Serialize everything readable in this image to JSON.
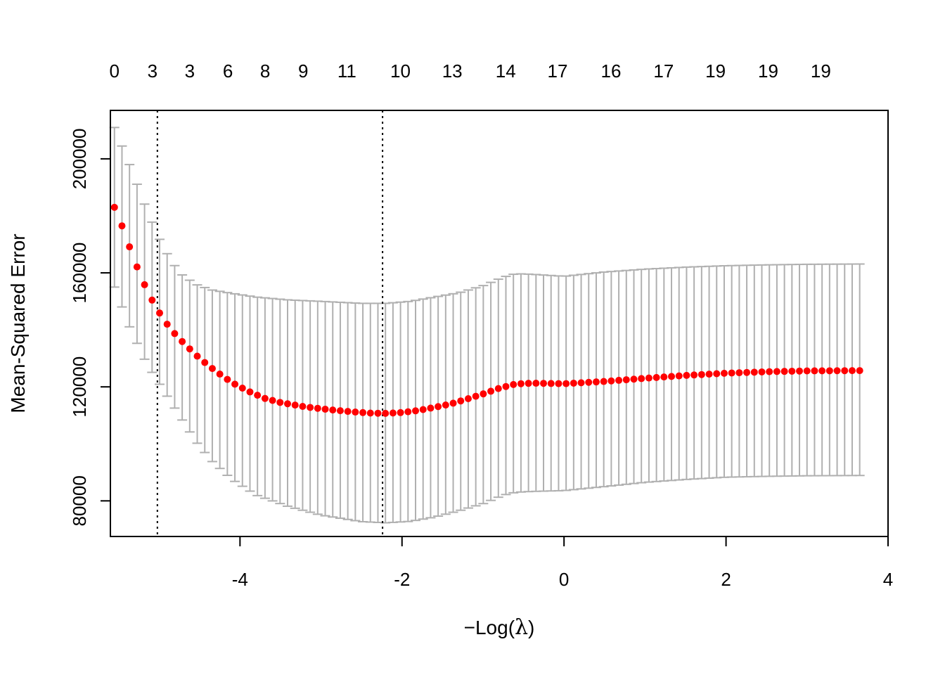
{
  "chart_data": {
    "type": "scatter",
    "title": "",
    "xlabel": "−Log(λ)",
    "xlabel_prefix": "−",
    "xlabel_text": "Log(",
    "xlabel_lambda": "λ",
    "xlabel_close": ")",
    "ylabel": "Mean-Squared Error",
    "xlim": [
      -5.6,
      4.0
    ],
    "ylim": [
      67500,
      217000
    ],
    "x_ticks": [
      -4,
      -2,
      0,
      2,
      4
    ],
    "x_tick_labels": [
      "-4",
      "-2",
      "0",
      "2",
      "4"
    ],
    "y_ticks": [
      80000,
      120000,
      160000,
      200000
    ],
    "y_tick_labels": [
      "80000",
      "120000",
      "160000",
      "200000"
    ],
    "top_axis_counts": [
      {
        "x": -5.55,
        "label": "0"
      },
      {
        "x": -5.08,
        "label": "3"
      },
      {
        "x": -4.62,
        "label": "3"
      },
      {
        "x": -4.15,
        "label": "6"
      },
      {
        "x": -3.69,
        "label": "8"
      },
      {
        "x": -3.22,
        "label": "9"
      },
      {
        "x": -2.68,
        "label": "11"
      },
      {
        "x": -2.02,
        "label": "10"
      },
      {
        "x": -1.38,
        "label": "13"
      },
      {
        "x": -0.72,
        "label": "14"
      },
      {
        "x": -0.08,
        "label": "17"
      },
      {
        "x": 0.58,
        "label": "16"
      },
      {
        "x": 1.23,
        "label": "17"
      },
      {
        "x": 1.87,
        "label": "19"
      },
      {
        "x": 2.52,
        "label": "19"
      },
      {
        "x": 3.17,
        "label": "19"
      }
    ],
    "vertical_lines_x": [
      -5.02,
      -2.24
    ],
    "x_start": -5.55,
    "x_end": 3.65,
    "n_points": 100,
    "mse_keyframes": [
      [
        -5.55,
        183000
      ],
      [
        -5.45,
        176000
      ],
      [
        -5.35,
        168000
      ],
      [
        -5.25,
        160500
      ],
      [
        -5.15,
        154000
      ],
      [
        -5.05,
        148500
      ],
      [
        -4.95,
        144000
      ],
      [
        -4.85,
        140000
      ],
      [
        -4.7,
        135500
      ],
      [
        -4.5,
        130000
      ],
      [
        -4.3,
        125500
      ],
      [
        -4.1,
        121500
      ],
      [
        -3.9,
        118500
      ],
      [
        -3.7,
        116000
      ],
      [
        -3.5,
        114500
      ],
      [
        -3.2,
        113000
      ],
      [
        -2.9,
        112000
      ],
      [
        -2.6,
        111200
      ],
      [
        -2.4,
        110800
      ],
      [
        -2.2,
        110700
      ],
      [
        -2.0,
        111000
      ],
      [
        -1.8,
        111700
      ],
      [
        -1.6,
        112800
      ],
      [
        -1.4,
        114000
      ],
      [
        -1.2,
        115700
      ],
      [
        -1.0,
        117500
      ],
      [
        -0.8,
        119500
      ],
      [
        -0.6,
        121000
      ],
      [
        -0.4,
        121300
      ],
      [
        0.0,
        121100
      ],
      [
        0.5,
        121900
      ],
      [
        1.0,
        123000
      ],
      [
        1.5,
        124000
      ],
      [
        2.0,
        124800
      ],
      [
        2.5,
        125300
      ],
      [
        3.0,
        125600
      ],
      [
        3.65,
        125700
      ]
    ],
    "upper_keyframes": [
      [
        -5.55,
        211000
      ],
      [
        -5.35,
        197000
      ],
      [
        -5.15,
        182000
      ],
      [
        -4.95,
        169000
      ],
      [
        -4.75,
        160000
      ],
      [
        -4.55,
        156000
      ],
      [
        -4.35,
        154000
      ],
      [
        -4.1,
        152800
      ],
      [
        -3.8,
        151500
      ],
      [
        -3.4,
        150500
      ],
      [
        -3.0,
        150000
      ],
      [
        -2.5,
        149300
      ],
      [
        -2.2,
        149300
      ],
      [
        -1.9,
        150000
      ],
      [
        -1.6,
        151500
      ],
      [
        -1.3,
        153000
      ],
      [
        -1.0,
        155500
      ],
      [
        -0.75,
        158500
      ],
      [
        -0.6,
        159700
      ],
      [
        -0.4,
        159500
      ],
      [
        0.0,
        158800
      ],
      [
        0.5,
        160300
      ],
      [
        1.0,
        161300
      ],
      [
        1.5,
        162000
      ],
      [
        2.0,
        162500
      ],
      [
        2.5,
        162800
      ],
      [
        3.0,
        163000
      ],
      [
        3.65,
        163100
      ]
    ],
    "lower_keyframes": [
      [
        -5.55,
        155000
      ],
      [
        -5.35,
        140000
      ],
      [
        -5.15,
        128000
      ],
      [
        -4.95,
        119000
      ],
      [
        -4.75,
        110000
      ],
      [
        -4.55,
        101000
      ],
      [
        -4.35,
        94000
      ],
      [
        -4.1,
        87500
      ],
      [
        -3.8,
        82000
      ],
      [
        -3.4,
        78000
      ],
      [
        -3.0,
        75000
      ],
      [
        -2.5,
        72700
      ],
      [
        -2.2,
        72300
      ],
      [
        -1.9,
        72800
      ],
      [
        -1.6,
        74300
      ],
      [
        -1.3,
        76500
      ],
      [
        -1.0,
        79000
      ],
      [
        -0.75,
        82000
      ],
      [
        -0.6,
        83000
      ],
      [
        -0.4,
        83300
      ],
      [
        0.0,
        83600
      ],
      [
        0.5,
        85000
      ],
      [
        1.0,
        86500
      ],
      [
        1.5,
        87500
      ],
      [
        2.0,
        88300
      ],
      [
        2.5,
        88600
      ],
      [
        3.0,
        88800
      ],
      [
        3.65,
        88900
      ]
    ],
    "colors": {
      "points": "#ff0000",
      "error_bars": "#b0b0b0",
      "axis": "#000000"
    },
    "grid": false,
    "legend": "none"
  }
}
